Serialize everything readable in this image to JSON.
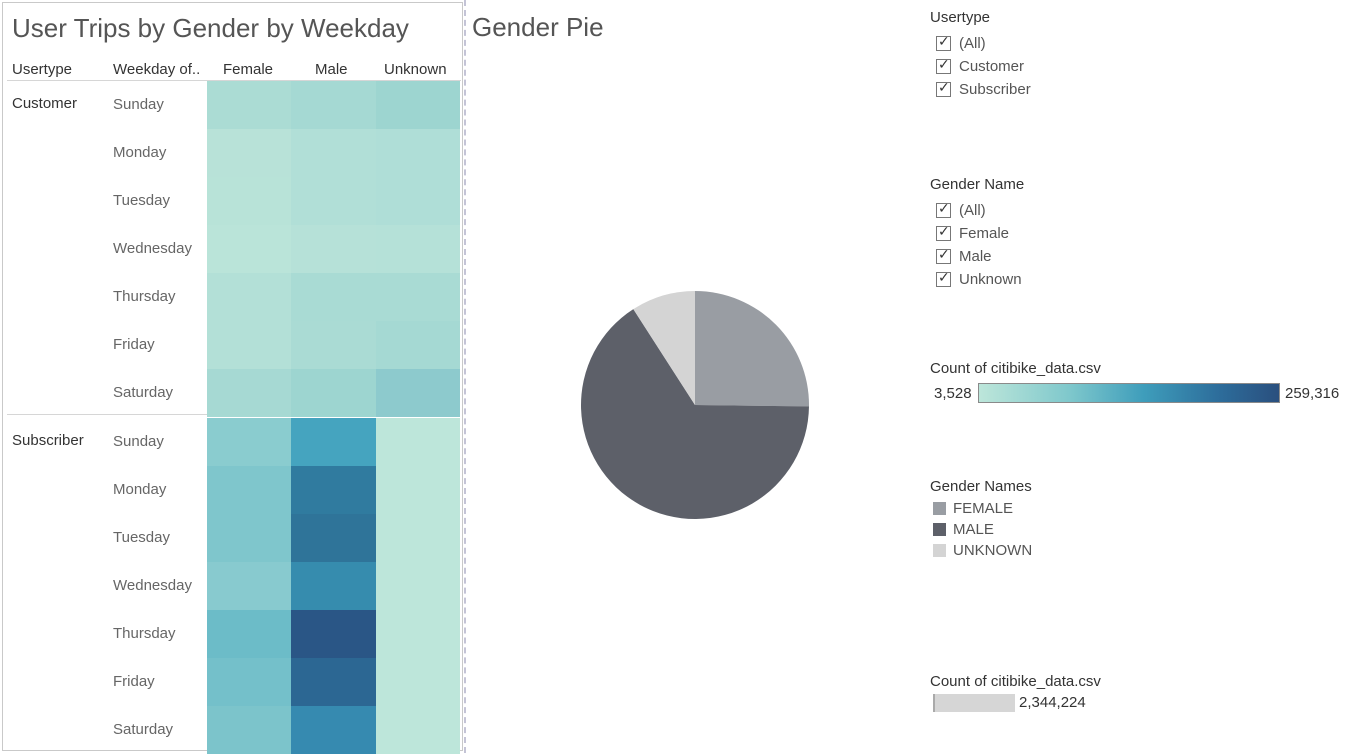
{
  "heatmap": {
    "title": "User Trips by Gender by Weekday",
    "headers": {
      "usertype": "Usertype",
      "weekday": "Weekday of..",
      "female": "Female",
      "male": "Male",
      "unknown": "Unknown"
    },
    "groups": [
      {
        "name": "Customer",
        "days": [
          "Sunday",
          "Monday",
          "Tuesday",
          "Wednesday",
          "Thursday",
          "Friday",
          "Saturday"
        ],
        "colors": [
          [
            "#abdcd4",
            "#a5d9d3",
            "#9dd5d0"
          ],
          [
            "#b8e2d8",
            "#b1dfd7",
            "#afded7"
          ],
          [
            "#b8e3d8",
            "#b1dfd7",
            "#afded7"
          ],
          [
            "#bae4d9",
            "#b6e1d8",
            "#b5e1d8"
          ],
          [
            "#b3e0d7",
            "#a9dbd4",
            "#a9dbd4"
          ],
          [
            "#b3e0d7",
            "#aadbd4",
            "#a5d9d3"
          ],
          [
            "#a6d9d3",
            "#9dd5d0",
            "#8dcacd"
          ]
        ]
      },
      {
        "name": "Subscriber",
        "days": [
          "Sunday",
          "Monday",
          "Tuesday",
          "Wednesday",
          "Thursday",
          "Friday",
          "Saturday"
        ],
        "colors": [
          [
            "#8acccf",
            "#45a4bf",
            "#bde6da"
          ],
          [
            "#7fc6cc",
            "#307b9f",
            "#bde6da"
          ],
          [
            "#7fc6cc",
            "#2f7499",
            "#bde6da"
          ],
          [
            "#88cacf",
            "#368cae",
            "#bde6da"
          ],
          [
            "#6cbcc8",
            "#2a5686",
            "#bde6da"
          ],
          [
            "#74c0ca",
            "#2c6793",
            "#bde6da"
          ],
          [
            "#7cc4cb",
            "#368ab0",
            "#bde6da"
          ]
        ]
      }
    ]
  },
  "pie": {
    "title": "Gender Pie",
    "chart_data": {
      "type": "pie",
      "categories": [
        "FEMALE",
        "MALE",
        "UNKNOWN"
      ],
      "values": [
        25.2,
        65.7,
        9.1
      ],
      "colors": [
        "#999da3",
        "#5d6069",
        "#d4d4d4"
      ]
    }
  },
  "filters": {
    "usertype": {
      "title": "Usertype",
      "items": [
        "(All)",
        "Customer",
        "Subscriber"
      ]
    },
    "gender_name": {
      "title": "Gender Name",
      "items": [
        "(All)",
        "Female",
        "Male",
        "Unknown"
      ]
    }
  },
  "color_legend": {
    "title": "Count of citibike_data.csv",
    "min": "3,528",
    "max": "259,316"
  },
  "gender_legend": {
    "title": "Gender Names",
    "items": [
      {
        "label": "FEMALE",
        "color": "#999da3"
      },
      {
        "label": "MALE",
        "color": "#5d6069"
      },
      {
        "label": "UNKNOWN",
        "color": "#d4d4d4"
      }
    ]
  },
  "size_legend": {
    "title": "Count of citibike_data.csv",
    "value": "2,344,224"
  }
}
